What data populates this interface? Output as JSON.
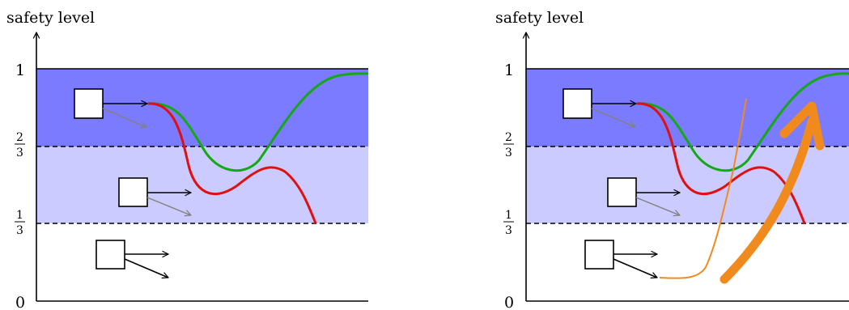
{
  "panels": [
    {
      "id": "left",
      "ylabel": "safety level",
      "ticks": {
        "one": "1",
        "two_thirds": {
          "num": "2",
          "den": "3"
        },
        "one_third": {
          "num": "1",
          "den": "3"
        },
        "zero": "0"
      },
      "band_colors": {
        "high": "#7b7bff",
        "mid": "#cbcbff",
        "low": "#ffffff"
      },
      "curve_colors": {
        "green": "#15a815",
        "red": "#e01010"
      },
      "recovery_arrow": false,
      "recovery_curve": false
    },
    {
      "id": "right",
      "ylabel": "safety level",
      "ticks": {
        "one": "1",
        "two_thirds": {
          "num": "2",
          "den": "3"
        },
        "one_third": {
          "num": "1",
          "den": "3"
        },
        "zero": "0"
      },
      "band_colors": {
        "high": "#7b7bff",
        "mid": "#cbcbff",
        "low": "#ffffff"
      },
      "curve_colors": {
        "green": "#15a815",
        "red": "#e01010",
        "orange": "#f18a1c"
      },
      "recovery_arrow": true,
      "recovery_curve": true
    }
  ],
  "icons": [
    "vehicle-box-icon",
    "motion-arrow-icon"
  ]
}
